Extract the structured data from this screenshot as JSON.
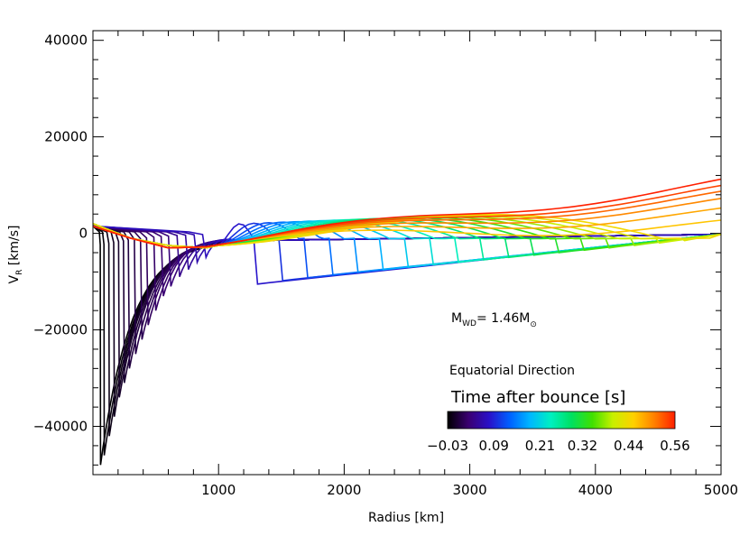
{
  "chart_data": {
    "type": "line",
    "title": "",
    "xlabel": "Radius [km]",
    "ylabel_main": "V",
    "ylabel_sub": "R",
    "ylabel_unit": " [km/s]",
    "xlim": [
      0,
      5000
    ],
    "ylim": [
      -50000,
      42000
    ],
    "x_ticks": [
      1000,
      2000,
      3000,
      4000,
      5000
    ],
    "y_ticks": [
      -40000,
      -20000,
      0,
      20000,
      40000
    ],
    "x_tick_labels": [
      "1000",
      "2000",
      "3000",
      "4000",
      "5000"
    ],
    "y_tick_labels": [
      "−40000",
      "−20000",
      "0",
      "20000",
      "40000"
    ],
    "grid": false,
    "annotations": {
      "mass_main": "M",
      "mass_sub": "WD",
      "mass_value": "= 1.46M",
      "mass_sun": "⊙",
      "direction": "Equatorial Direction"
    },
    "colorbar": {
      "title": "Time after bounce [s]",
      "ticks": [
        "−0.03",
        "0.09",
        "0.21",
        "0.32",
        "0.44",
        "0.56"
      ],
      "range": [
        -0.03,
        0.56
      ],
      "colors": [
        "#000000",
        "#3a0070",
        "#2a10c8",
        "#0060ff",
        "#00b8ff",
        "#00f0c0",
        "#00e060",
        "#40e000",
        "#c8f000",
        "#ffd000",
        "#ff8000",
        "#ff2000"
      ]
    },
    "series_description": "Radial velocity profiles at successive times after bounce; each curve colored by time",
    "collapse_series": [
      {
        "t": -0.03,
        "rs": 60,
        "vmin": -48000
      },
      {
        "t": -0.025,
        "rs": 90,
        "vmin": -46000
      },
      {
        "t": -0.02,
        "rs": 130,
        "vmin": -42000
      },
      {
        "t": -0.015,
        "rs": 170,
        "vmin": -38000
      },
      {
        "t": -0.01,
        "rs": 210,
        "vmin": -34000
      },
      {
        "t": -0.005,
        "rs": 250,
        "vmin": -31000
      },
      {
        "t": 0.0,
        "rs": 290,
        "vmin": -28000
      },
      {
        "t": 0.005,
        "rs": 340,
        "vmin": -25000
      },
      {
        "t": 0.01,
        "rs": 390,
        "vmin": -22000
      },
      {
        "t": 0.015,
        "rs": 440,
        "vmin": -19000
      },
      {
        "t": 0.02,
        "rs": 500,
        "vmin": -16000
      },
      {
        "t": 0.025,
        "rs": 560,
        "vmin": -13000
      },
      {
        "t": 0.03,
        "rs": 620,
        "vmin": -11000
      },
      {
        "t": 0.04,
        "rs": 690,
        "vmin": -9000
      },
      {
        "t": 0.05,
        "rs": 760,
        "vmin": -7500
      },
      {
        "t": 0.06,
        "rs": 830,
        "vmin": -6000
      },
      {
        "t": 0.07,
        "rs": 900,
        "vmin": -5000
      }
    ],
    "outer_series": [
      {
        "t": 0.08,
        "rs": 1300,
        "vmin": -10500
      },
      {
        "t": 0.1,
        "rs": 1500,
        "vmin": -9800
      },
      {
        "t": 0.12,
        "rs": 1700,
        "vmin": -9200
      },
      {
        "t": 0.14,
        "rs": 1900,
        "vmin": -8600
      },
      {
        "t": 0.16,
        "rs": 2100,
        "vmin": -8000
      },
      {
        "t": 0.18,
        "rs": 2300,
        "vmin": -7500
      },
      {
        "t": 0.2,
        "rs": 2500,
        "vmin": -7000
      },
      {
        "t": 0.22,
        "rs": 2700,
        "vmin": -6500
      },
      {
        "t": 0.24,
        "rs": 2900,
        "vmin": -6000
      },
      {
        "t": 0.26,
        "rs": 3100,
        "vmin": -5500
      },
      {
        "t": 0.28,
        "rs": 3300,
        "vmin": -5000
      },
      {
        "t": 0.3,
        "rs": 3500,
        "vmin": -4500
      },
      {
        "t": 0.32,
        "rs": 3700,
        "vmin": -4000
      },
      {
        "t": 0.34,
        "rs": 3900,
        "vmin": -3500
      },
      {
        "t": 0.36,
        "rs": 4100,
        "vmin": -3000
      },
      {
        "t": 0.38,
        "rs": 4300,
        "vmin": -2500
      },
      {
        "t": 0.4,
        "rs": 4500,
        "vmin": -2000
      },
      {
        "t": 0.42,
        "rs": 4700,
        "vmin": -1500
      },
      {
        "t": 0.44,
        "rs": 4900,
        "vmin": -1000
      }
    ],
    "late_series": [
      {
        "t": 0.46,
        "vend": 2000
      },
      {
        "t": 0.48,
        "vend": 4500
      },
      {
        "t": 0.5,
        "vend": 6500
      },
      {
        "t": 0.52,
        "vend": 8000
      },
      {
        "t": 0.54,
        "vend": 9200
      },
      {
        "t": 0.56,
        "vend": 10500
      }
    ]
  }
}
